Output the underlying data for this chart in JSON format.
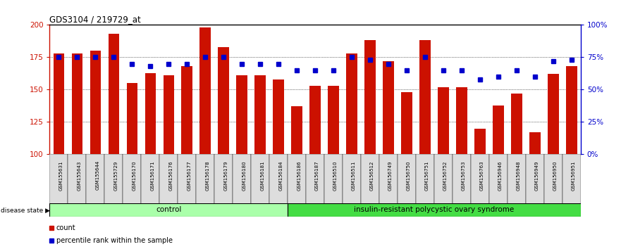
{
  "title": "GDS3104 / 219729_at",
  "samples": [
    "GSM155631",
    "GSM155643",
    "GSM155644",
    "GSM155729",
    "GSM156170",
    "GSM156171",
    "GSM156176",
    "GSM156177",
    "GSM156178",
    "GSM156179",
    "GSM156180",
    "GSM156181",
    "GSM156184",
    "GSM156186",
    "GSM156187",
    "GSM156510",
    "GSM156511",
    "GSM156512",
    "GSM156749",
    "GSM156750",
    "GSM156751",
    "GSM156752",
    "GSM156753",
    "GSM156763",
    "GSM156946",
    "GSM156948",
    "GSM156949",
    "GSM156950",
    "GSM156951"
  ],
  "bar_values": [
    178,
    178,
    180,
    193,
    155,
    163,
    161,
    168,
    198,
    183,
    161,
    161,
    158,
    137,
    153,
    153,
    178,
    188,
    172,
    148,
    188,
    152,
    152,
    120,
    138,
    147,
    117,
    162,
    168
  ],
  "percentile_values": [
    75,
    75,
    75,
    75,
    70,
    68,
    70,
    70,
    75,
    75,
    70,
    70,
    70,
    65,
    65,
    65,
    75,
    73,
    70,
    65,
    75,
    65,
    65,
    58,
    60,
    65,
    60,
    72,
    73
  ],
  "control_count": 13,
  "disease_count": 16,
  "bar_color": "#CC1100",
  "dot_color": "#0000CC",
  "ylim_left": [
    100,
    200
  ],
  "ylim_right": [
    0,
    100
  ],
  "yticks_left": [
    100,
    125,
    150,
    175,
    200
  ],
  "yticks_right": [
    0,
    25,
    50,
    75,
    100
  ],
  "control_label": "control",
  "disease_label": "insulin-resistant polycystic ovary syndrome",
  "disease_state_label": "disease state",
  "legend_bar_label": "count",
  "legend_dot_label": "percentile rank within the sample",
  "control_color": "#AAFFAA",
  "disease_color": "#44DD44",
  "bar_width": 0.6,
  "fig_width": 8.81,
  "fig_height": 3.54,
  "dpi": 100
}
